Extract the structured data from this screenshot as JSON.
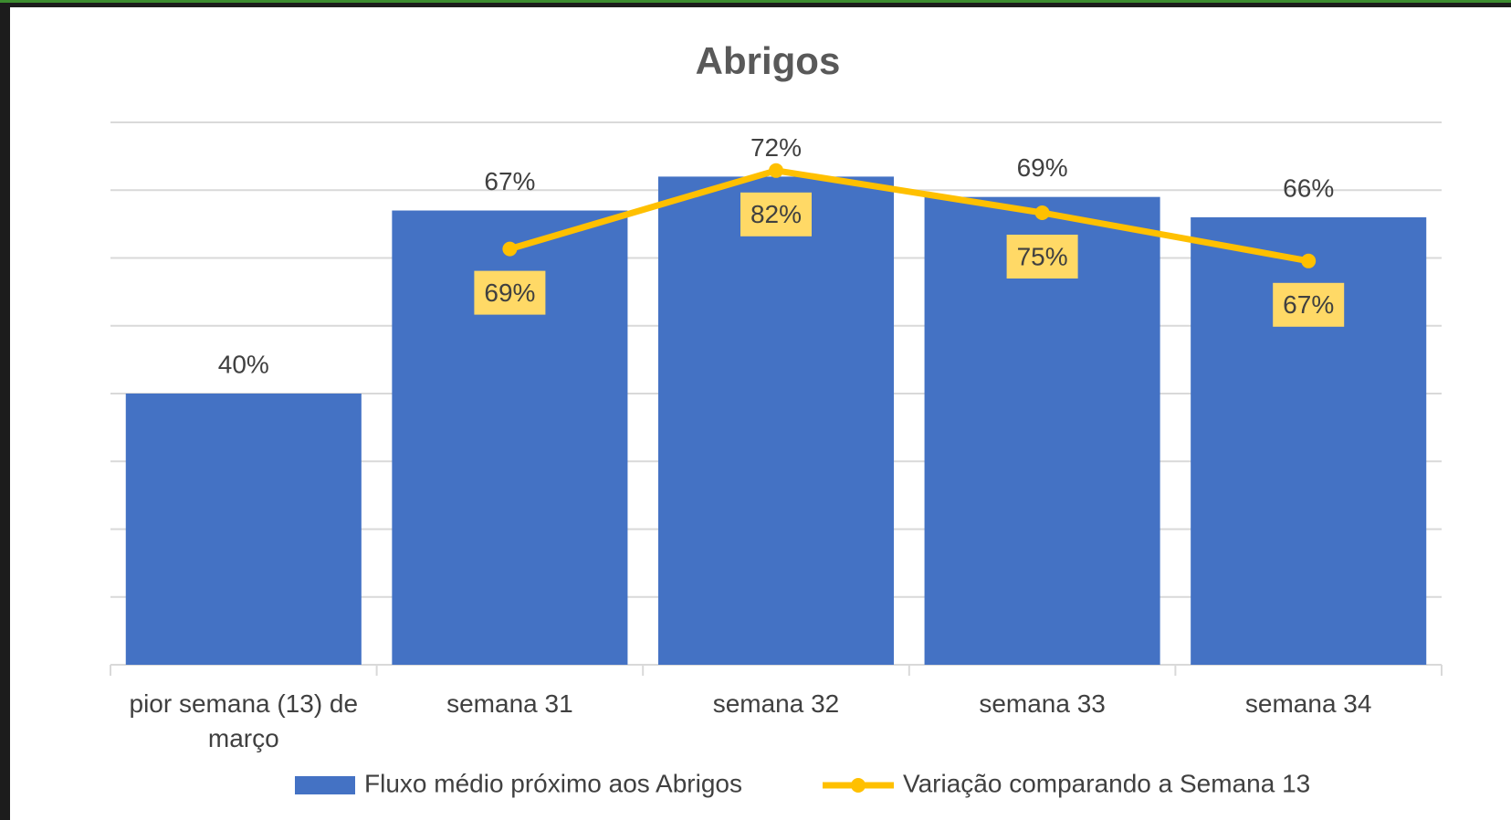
{
  "chart_data": {
    "type": "bar",
    "title": "Abrigos",
    "categories": [
      "pior semana (13) de março",
      "semana 31",
      "semana 32",
      "semana 33",
      "semana 34"
    ],
    "series": [
      {
        "name": "Fluxo médio próximo aos Abrigos",
        "type": "bar",
        "color": "#4472c4",
        "values": [
          40,
          67,
          72,
          69,
          66
        ],
        "value_labels": [
          "40%",
          "67%",
          "72%",
          "69%",
          "66%"
        ]
      },
      {
        "name": "Variação comparando a Semana 13",
        "type": "line",
        "axis": "y2",
        "color": "#ffc000",
        "values": [
          null,
          69,
          82,
          75,
          67
        ],
        "value_labels": [
          null,
          "69%",
          "82%",
          "75%",
          "67%"
        ]
      }
    ],
    "ylim": [
      0,
      80
    ],
    "yticks": [
      0,
      10,
      20,
      30,
      40,
      50,
      60,
      70,
      80
    ],
    "y2lim": [
      0,
      90
    ],
    "grid": true,
    "legend": "bottom"
  }
}
